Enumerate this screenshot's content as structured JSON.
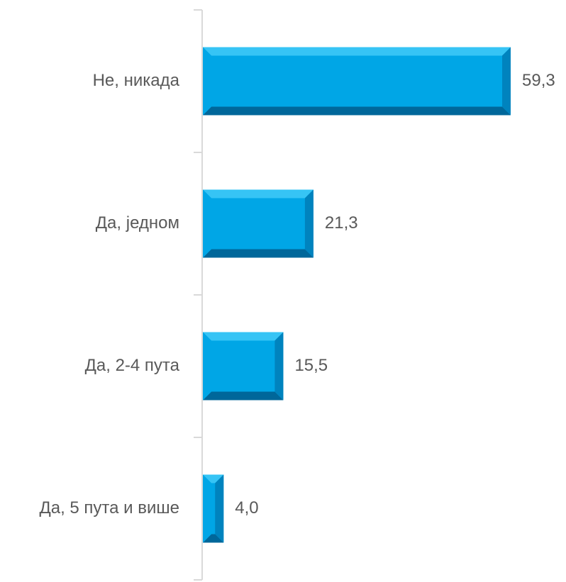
{
  "chart_data": {
    "type": "bar",
    "orientation": "horizontal",
    "categories": [
      "Не, никада",
      "Да, једном",
      "Да, 2-4 пута",
      "Да, 5 пута и више"
    ],
    "values": [
      59.3,
      21.3,
      15.5,
      4.0
    ],
    "value_labels": [
      "59,3",
      "21,3",
      "15,5",
      "4,0"
    ],
    "xlim": [
      0,
      59.3
    ],
    "grid": false,
    "legend": "none",
    "colors": {
      "bar": "#00A6E6",
      "bar_top": "#36C4F5",
      "bar_bottom": "#00679A",
      "bar_side": "#0083BE",
      "axis": "#D9D9D9",
      "text": "#595959"
    }
  }
}
